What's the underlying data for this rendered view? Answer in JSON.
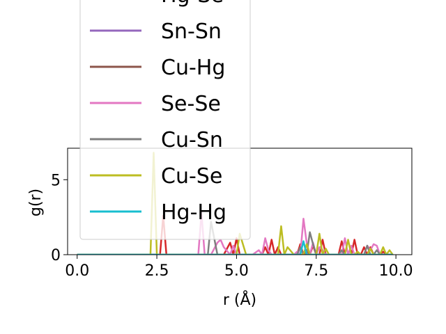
{
  "chart_data": {
    "type": "line",
    "xlabel": "r (Å)",
    "ylabel": "g(r)",
    "xlim": [
      -0.3,
      10.5
    ],
    "ylim": [
      0,
      7.1
    ],
    "xticks": [
      "0.0",
      "2.5",
      "5.0",
      "7.5",
      "10.0"
    ],
    "yticks": [
      "0",
      "5"
    ],
    "grid": false,
    "legend_position": "upper-left",
    "x": [
      0.0,
      0.5,
      1.0,
      1.5,
      2.0,
      2.3,
      2.4,
      2.5,
      2.6,
      2.7,
      2.8,
      3.0,
      3.5,
      3.8,
      3.9,
      4.0,
      4.1,
      4.2,
      4.4,
      4.5,
      4.6,
      4.8,
      4.9,
      5.0,
      5.1,
      5.3,
      5.5,
      5.7,
      5.8,
      5.9,
      6.0,
      6.1,
      6.2,
      6.3,
      6.4,
      6.5,
      6.6,
      6.8,
      6.9,
      7.0,
      7.1,
      7.2,
      7.3,
      7.4,
      7.5,
      7.6,
      7.7,
      7.8,
      7.9,
      8.0,
      8.2,
      8.3,
      8.4,
      8.5,
      8.6,
      8.7,
      8.8,
      8.9,
      9.0,
      9.1,
      9.2,
      9.3,
      9.4,
      9.5,
      9.6,
      9.7,
      9.8,
      9.9
    ],
    "series": [
      {
        "name": "Hg-Se",
        "color": "#d62728",
        "values": [
          0,
          0,
          0,
          0,
          0,
          0,
          0,
          0,
          0,
          2.6,
          0,
          0,
          0,
          0,
          0,
          0,
          0,
          0,
          0,
          0,
          0,
          0.8,
          0,
          1.1,
          0,
          0,
          0,
          0,
          0,
          0.5,
          0,
          1.0,
          0,
          0.5,
          0,
          0,
          0,
          0,
          0,
          0.7,
          0,
          0.3,
          0,
          0.6,
          0,
          0,
          1.0,
          0,
          0,
          0,
          0,
          0.9,
          0,
          0,
          0,
          1.0,
          0,
          0,
          0.5,
          0,
          0.5,
          0,
          0,
          0,
          0.2,
          0,
          0,
          0
        ]
      },
      {
        "name": "Sn-Sn",
        "color": "#9467bd",
        "values": [
          0,
          0,
          0,
          0,
          0,
          0,
          0,
          0,
          0,
          0,
          0,
          0,
          0,
          0,
          0,
          0,
          0,
          0,
          0,
          0,
          0,
          0,
          0,
          0,
          0,
          0,
          0,
          0,
          0,
          0,
          0,
          0,
          0,
          0,
          0,
          0,
          0,
          0,
          0,
          0,
          0,
          0,
          0,
          0,
          0,
          0,
          0,
          0,
          0,
          0,
          0,
          0,
          0,
          0,
          0,
          0,
          0,
          0,
          0,
          0,
          0,
          0,
          0,
          0,
          0,
          0,
          0,
          0
        ]
      },
      {
        "name": "Cu-Hg",
        "color": "#8c564b",
        "values": [
          0,
          0,
          0,
          0,
          0,
          0,
          0,
          0,
          0,
          0,
          0,
          0,
          0,
          0,
          0,
          0,
          0,
          0,
          0,
          0,
          0,
          0,
          0,
          0,
          0,
          0,
          0,
          0,
          0,
          0,
          0,
          0,
          0,
          0,
          0,
          0,
          0,
          0,
          0,
          0,
          0,
          0,
          0,
          0,
          0,
          0,
          0,
          0,
          0,
          0,
          0,
          0,
          0,
          0,
          0,
          0,
          0,
          0,
          0,
          0,
          0,
          0,
          0,
          0,
          0,
          0,
          0,
          0
        ]
      },
      {
        "name": "Se-Se",
        "color": "#e377c2",
        "values": [
          0,
          0,
          0,
          0,
          0,
          0,
          0,
          0,
          0,
          0,
          0,
          0,
          0,
          0,
          2.8,
          0,
          0,
          0,
          0.8,
          1.0,
          0.5,
          0,
          0.6,
          0,
          0,
          0,
          0,
          0.3,
          0,
          1.1,
          0.3,
          0,
          0,
          0,
          0,
          0,
          0,
          0,
          0.2,
          0,
          2.4,
          0.8,
          0,
          0.8,
          0,
          0.5,
          0.3,
          0,
          0,
          0,
          0,
          0,
          1.1,
          0,
          0.6,
          0,
          0,
          0,
          0,
          0.6,
          0.3,
          0.7,
          0.6,
          0,
          0,
          0,
          0,
          0
        ]
      },
      {
        "name": "Cu-Sn",
        "color": "#7f7f7f",
        "values": [
          0,
          0,
          0,
          0,
          0,
          0,
          0,
          0,
          0,
          0,
          0,
          0,
          0,
          0,
          0,
          0,
          0,
          2.2,
          0,
          0,
          0,
          0,
          0,
          0,
          0,
          0,
          0,
          0,
          0,
          0,
          0,
          0,
          0,
          0,
          0,
          0,
          0,
          0,
          0,
          0.5,
          0,
          0,
          1.5,
          0.7,
          0,
          0,
          0,
          0,
          0,
          0,
          0,
          0.3,
          0,
          0,
          0,
          0,
          0,
          0,
          0,
          0.6,
          0,
          0,
          0.3,
          0,
          0,
          0,
          0,
          0
        ]
      },
      {
        "name": "Cu-Se",
        "color": "#bcbd22",
        "values": [
          0,
          0,
          0,
          0,
          0,
          0,
          6.8,
          0,
          0,
          0,
          0,
          0,
          0,
          0,
          0,
          0,
          0,
          0,
          0,
          0,
          0,
          0,
          0,
          0,
          1.4,
          0,
          0,
          0,
          0,
          0,
          0,
          0,
          0,
          0,
          1.9,
          0,
          0.5,
          0,
          0,
          0,
          0,
          0.7,
          0,
          0,
          0,
          1.4,
          0,
          0.4,
          0,
          0,
          0,
          0,
          0,
          1.0,
          0,
          0,
          0.2,
          0,
          0,
          0,
          0.4,
          0,
          0,
          0,
          0.5,
          0,
          0.3,
          0
        ]
      },
      {
        "name": "Hg-Hg",
        "color": "#17becf",
        "values": [
          0,
          0,
          0,
          0,
          0,
          0,
          0,
          0,
          0,
          0,
          0,
          0,
          0,
          0,
          0,
          0,
          0,
          0,
          0,
          0,
          0,
          0,
          0,
          0,
          0,
          0,
          0,
          0,
          0,
          0,
          0,
          0,
          0,
          0,
          0,
          0,
          0,
          0,
          0,
          0,
          0.9,
          0,
          0,
          0,
          0,
          0,
          0,
          0,
          0,
          0,
          0,
          0,
          0,
          0,
          0,
          0,
          0,
          0,
          0,
          0,
          0,
          0,
          0,
          0,
          0,
          0,
          0,
          0
        ]
      }
    ],
    "legend": [
      {
        "label": "Hg-Se",
        "color": "#d62728"
      },
      {
        "label": "Sn-Sn",
        "color": "#9467bd"
      },
      {
        "label": "Cu-Hg",
        "color": "#8c564b"
      },
      {
        "label": "Se-Se",
        "color": "#e377c2"
      },
      {
        "label": "Cu-Sn",
        "color": "#7f7f7f"
      },
      {
        "label": "Cu-Se",
        "color": "#bcbd22"
      },
      {
        "label": "Hg-Hg",
        "color": "#17becf"
      }
    ]
  }
}
